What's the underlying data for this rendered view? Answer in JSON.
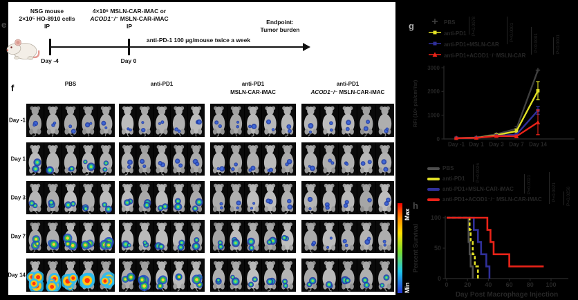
{
  "panel_e": {
    "label": "e",
    "tumor_injection_lines": [
      "NSG mouse",
      "2×10⁵ HO-8910 cells",
      "IP"
    ],
    "mac_injection_lines": [
      "4×10⁶ MSLN-CAR-iMAC or",
      "ACOD1⁻/⁻ MSLN-CAR-iMAC",
      "IP"
    ],
    "antibody_text": "anti-PD-1 100 μg/mouse twice a week",
    "endpoint_lines": [
      "Endpoint:",
      "Tumor burden"
    ],
    "timeline_start_label": "Day -4",
    "timeline_treatment_label": "Day 0"
  },
  "panel_f": {
    "label": "f",
    "group_headers": [
      [
        "PBS"
      ],
      [
        "anti-PD1"
      ],
      [
        "anti-PD1",
        "MSLN-CAR-iMAC"
      ],
      [
        "anti-PD1",
        "ACOD1⁻/⁻ MSLN-CAR-iMAC"
      ]
    ],
    "row_labels": [
      "Day -1",
      "Day 1",
      "Day 3",
      "Day 7",
      "Day 14"
    ],
    "mice_per_group": 5,
    "signal_levels": [
      [
        1,
        1,
        1,
        1
      ],
      [
        2,
        1,
        1,
        1
      ],
      [
        2,
        2,
        1,
        1
      ],
      [
        3,
        2,
        2,
        1
      ],
      [
        4,
        3,
        2,
        2
      ]
    ],
    "colorbar": {
      "max_label": "Max",
      "min_label": "Min",
      "top_color": "#f40000",
      "bottom_color": "#2336d6"
    }
  },
  "chart_data": [
    {
      "type": "line",
      "panel_label": "g",
      "x_categories": [
        "Day -1",
        "Day 1",
        "Day 3",
        "Day 7",
        "Day 14"
      ],
      "ylabel": "RFI (10⁶ p/s/cm²/sr)",
      "ylim": [
        0,
        3000
      ],
      "yticks": [
        0,
        1000,
        2000,
        3000
      ],
      "legend_position": "top-left",
      "grid": false,
      "series": [
        {
          "name": "PBS",
          "color": "#3f3f3f",
          "marker": "plus",
          "values": [
            40,
            60,
            200,
            430,
            2900
          ],
          "err": [
            12,
            15,
            45,
            90,
            0
          ]
        },
        {
          "name": "anti-PD1",
          "color": "#e3e226",
          "marker": "square",
          "values": [
            35,
            50,
            160,
            330,
            2030
          ],
          "err": [
            10,
            14,
            40,
            90,
            380
          ]
        },
        {
          "name": "anti-PD1+MSLN-CAR",
          "color": "#30309a",
          "marker": "square",
          "values": [
            35,
            45,
            130,
            185,
            1200
          ],
          "err": [
            10,
            12,
            30,
            60,
            160
          ]
        },
        {
          "name": "anti-PD1+ACOD1⁻/⁻MSLN-CAR",
          "color": "#ea2318",
          "marker": "triangle",
          "values": [
            35,
            45,
            120,
            110,
            700
          ],
          "err": [
            10,
            12,
            30,
            55,
            520
          ]
        }
      ],
      "pvalues": [
        "P=0.0078",
        "P<0.0001",
        "P<0.0001",
        "P<0.0001"
      ]
    },
    {
      "type": "step_survival",
      "panel_label": "h",
      "xlabel": "Day Post Macrophage Injection",
      "ylabel": "Percent Survival",
      "xlim": [
        0,
        100
      ],
      "xticks": [
        0,
        20,
        40,
        60,
        80,
        100
      ],
      "yticks": [
        0,
        50,
        100
      ],
      "series": [
        {
          "name": "PBS",
          "color": "#4d4d4d",
          "dashed": false,
          "points": [
            [
              0,
              100
            ],
            [
              21,
              100
            ],
            [
              21,
              60
            ],
            [
              22,
              60
            ],
            [
              22,
              40
            ],
            [
              23,
              40
            ],
            [
              23,
              20
            ],
            [
              25,
              20
            ],
            [
              25,
              0
            ]
          ]
        },
        {
          "name": "anti-PD1",
          "color": "#e3e226",
          "dashed": true,
          "points": [
            [
              0,
              100
            ],
            [
              22,
              100
            ],
            [
              22,
              80
            ],
            [
              23,
              80
            ],
            [
              23,
              60
            ],
            [
              25,
              60
            ],
            [
              25,
              40
            ],
            [
              27,
              40
            ],
            [
              27,
              20
            ],
            [
              30,
              20
            ],
            [
              30,
              0
            ]
          ]
        },
        {
          "name": "anti-PD1+MSLN-CAR-iMAC",
          "color": "#30309a",
          "dashed": false,
          "points": [
            [
              0,
              100
            ],
            [
              26,
              100
            ],
            [
              26,
              80
            ],
            [
              30,
              80
            ],
            [
              30,
              60
            ],
            [
              33,
              60
            ],
            [
              33,
              40
            ],
            [
              38,
              40
            ],
            [
              38,
              20
            ],
            [
              41,
              20
            ],
            [
              41,
              0
            ]
          ]
        },
        {
          "name": "anti-PD1+ACOD1⁻/⁻ MSLN-CAR-iMAC",
          "color": "#ea2318",
          "dashed": false,
          "points": [
            [
              0,
              100
            ],
            [
              39,
              100
            ],
            [
              39,
              80
            ],
            [
              42,
              80
            ],
            [
              42,
              60
            ],
            [
              45,
              60
            ],
            [
              45,
              40
            ],
            [
              60,
              40
            ],
            [
              60,
              20
            ],
            [
              93,
              20
            ]
          ]
        }
      ],
      "pvalues": [
        "P=0.0026",
        "P=0.0021",
        "P=0.0021",
        "P=0.0256"
      ]
    }
  ]
}
